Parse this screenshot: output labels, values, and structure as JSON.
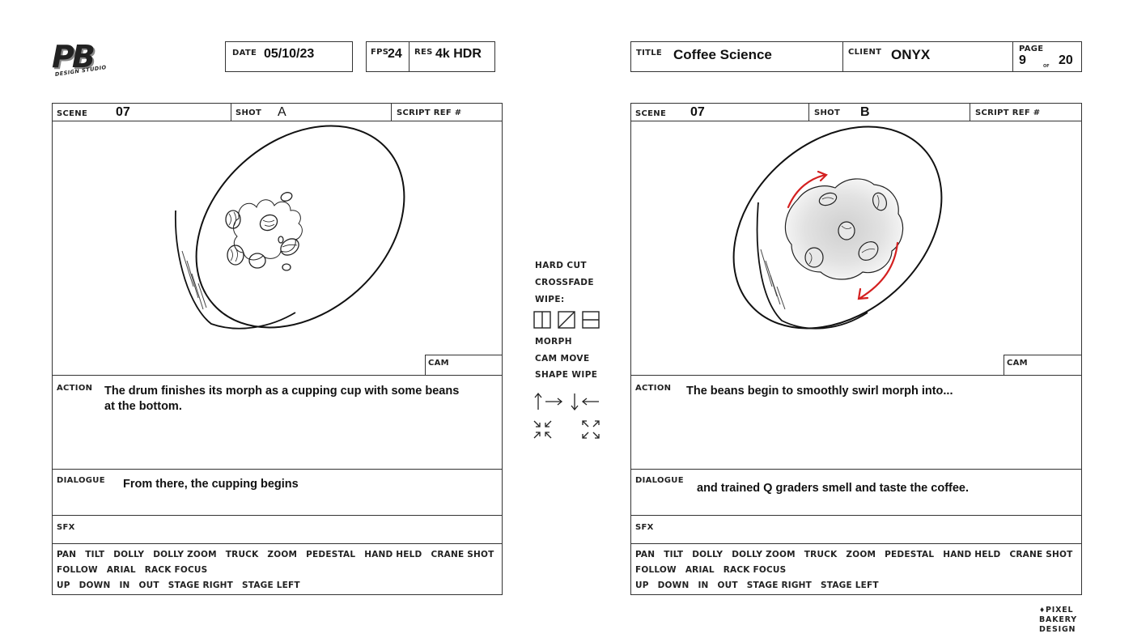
{
  "logo": {
    "mark": "PB",
    "subtitle": "DESIGN STUDIO"
  },
  "header_left": {
    "date_label": "DATE",
    "date": "05/10/23",
    "fps_label": "FPS",
    "fps": "24",
    "res_label": "RES",
    "res": "4k HDR"
  },
  "header_right": {
    "title_label": "TITLE",
    "title": "Coffee Science",
    "client_label": "CLIENT",
    "client": "ONYX",
    "page_label": "PAGE",
    "page": "9",
    "of_label": "OF",
    "total": "20"
  },
  "panels": [
    {
      "scene_label": "SCENE",
      "scene": "07",
      "shot_label": "SHOT",
      "shot": "A",
      "script_ref_label": "SCRIPT REF #",
      "cam_label": "CAM",
      "action_label": "ACTION",
      "action_line1": "The drum finishes its morph as a cupping cup with some beans",
      "action_line2": "at the bottom.",
      "dialogue_label": "DIALOGUE",
      "dialogue": "From there, the cupping begins",
      "sfx_label": "SFX"
    },
    {
      "scene_label": "SCENE",
      "scene": "07",
      "shot_label": "SHOT",
      "shot": "B",
      "script_ref_label": "SCRIPT REF #",
      "cam_label": "CAM",
      "action_label": "ACTION",
      "action_line1": "The beans begin to smoothly swirl morph into...",
      "action_line2": "",
      "dialogue_label": "DIALOGUE",
      "dialogue": "and trained Q graders smell and taste the coffee.",
      "sfx_label": "SFX"
    }
  ],
  "camera_moves": {
    "row1": [
      "PAN",
      "TILT",
      "DOLLY",
      "DOLLY ZOOM",
      "TRUCK",
      "ZOOM",
      "PEDESTAL",
      "HAND HELD",
      "CRANE SHOT"
    ],
    "row2": [
      "FOLLOW",
      "ARIAL",
      "RACK FOCUS"
    ],
    "row3": [
      "UP",
      "DOWN",
      "IN",
      "OUT",
      "STAGE RIGHT",
      "STAGE LEFT"
    ]
  },
  "transitions": {
    "hard_cut": "HARD CUT",
    "crossfade": "CROSSFADE",
    "wipe": "WIPE:",
    "morph": "MORPH",
    "cam_move": "CAM MOVE",
    "shape_wipe": "SHAPE WIPE"
  },
  "footer_logo": {
    "line1": "PIXEL",
    "line2": "BAKERY",
    "line3": "DESIGN"
  },
  "colors": {
    "ink": "#333333",
    "swirl_arrow": "#d42020"
  },
  "icons": [
    "wipe-vertical-icon",
    "wipe-diagonal-icon",
    "wipe-horizontal-icon",
    "arrow-up-right-icon",
    "arrow-down-left-icon",
    "arrows-converge-icon",
    "arrows-expand-icon"
  ]
}
